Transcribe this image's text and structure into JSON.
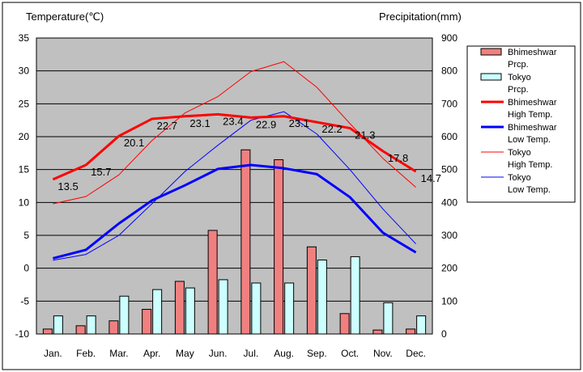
{
  "chart_data": {
    "type": "bar+line",
    "left_axis_title": "Temperature(℃)",
    "right_axis_title": "Precipitation(mm)",
    "categories": [
      "Jan.",
      "Feb.",
      "Mar.",
      "Apr.",
      "May",
      "Jun.",
      "Jul.",
      "Aug.",
      "Sep.",
      "Oct.",
      "Nov.",
      "Dec."
    ],
    "left_ylim": [
      -10,
      35
    ],
    "left_ticks": [
      "35",
      "30",
      "25",
      "20",
      "15",
      "10",
      "5",
      "0",
      "-5",
      "-10"
    ],
    "right_ylim": [
      0,
      900
    ],
    "right_ticks": [
      "900",
      "800",
      "700",
      "600",
      "500",
      "400",
      "300",
      "200",
      "100",
      "0"
    ],
    "bar_series": [
      {
        "name": "Bhimeshwar Prcp.",
        "color": "#f08080",
        "values": [
          15,
          25,
          40,
          75,
          160,
          315,
          560,
          530,
          265,
          62,
          12,
          15
        ]
      },
      {
        "name": "Tokyo Prcp.",
        "color": "#ccffff",
        "values": [
          55,
          55,
          115,
          135,
          140,
          165,
          155,
          155,
          225,
          235,
          95,
          55
        ]
      }
    ],
    "line_series": [
      {
        "name": "Bhimeshwar High Temp.",
        "color": "#ff0000",
        "width": 3,
        "values": [
          13.5,
          15.7,
          20.1,
          22.7,
          23.1,
          23.4,
          22.9,
          23.1,
          22.2,
          21.3,
          17.8,
          14.7
        ]
      },
      {
        "name": "Bhimeshwar Low Temp.",
        "color": "#0000ff",
        "width": 3,
        "values": [
          1.5,
          2.8,
          6.8,
          10.3,
          12.6,
          15.1,
          15.7,
          15.2,
          14.3,
          10.8,
          5.4,
          2.4
        ]
      },
      {
        "name": "Tokyo High Temp.",
        "color": "#ff0000",
        "width": 1,
        "values": [
          9.8,
          10.9,
          14.2,
          19.4,
          23.6,
          26.1,
          29.9,
          31.4,
          27.5,
          22.0,
          16.7,
          12.3
        ]
      },
      {
        "name": "Tokyo Low Temp.",
        "color": "#0000ff",
        "width": 1,
        "values": [
          1.2,
          2.1,
          5.0,
          9.8,
          14.7,
          18.7,
          22.5,
          23.8,
          20.4,
          15.0,
          9.0,
          3.7
        ]
      }
    ],
    "data_labels": [
      "13.5",
      "15.7",
      "20.1",
      "22.7",
      "23.1",
      "23.4",
      "22.9",
      "23.1",
      "22.2",
      "21.3",
      "17.8",
      "14.7"
    ],
    "legend": [
      {
        "line1": "Bhimeshwar",
        "line2": "Prcp.",
        "kind": "box",
        "color": "#f08080"
      },
      {
        "line1": "Tokyo",
        "line2": "Prcp.",
        "kind": "box",
        "color": "#ccffff"
      },
      {
        "line1": "Bhimeshwar",
        "line2": "High Temp.",
        "kind": "line",
        "color": "#ff0000",
        "width": 3
      },
      {
        "line1": "Bhimeshwar",
        "line2": "Low Temp.",
        "kind": "line",
        "color": "#0000ff",
        "width": 3
      },
      {
        "line1": "Tokyo",
        "line2": "High Temp.",
        "kind": "line",
        "color": "#ff0000",
        "width": 1
      },
      {
        "line1": "Tokyo",
        "line2": "Low Temp.",
        "kind": "line",
        "color": "#0000ff",
        "width": 1
      }
    ],
    "grid": true,
    "plot_background": "#c0c0c0",
    "legend_position": "right"
  }
}
